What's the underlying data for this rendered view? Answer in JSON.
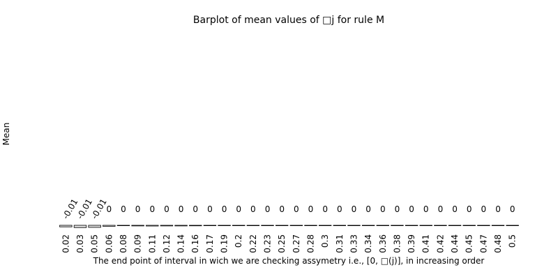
{
  "chart_data": {
    "type": "bar",
    "title": "Barplot of mean values of □j for rule M",
    "xlabel": "The end point of interval in wich we are checking assymetry i.e., [0, □(j)], in increasing order",
    "ylabel": "Mean",
    "categories": [
      "0.02",
      "0.03",
      "0.05",
      "0.06",
      "0.08",
      "0.09",
      "0.11",
      "0.12",
      "0.14",
      "0.16",
      "0.17",
      "0.19",
      "0.2",
      "0.22",
      "0.23",
      "0.25",
      "0.27",
      "0.28",
      "0.3",
      "0.31",
      "0.33",
      "0.34",
      "0.36",
      "0.38",
      "0.39",
      "0.41",
      "0.42",
      "0.44",
      "0.45",
      "0.47",
      "0.48",
      "0.5"
    ],
    "values": [
      -0.0075,
      -0.011,
      -0.01,
      -0.005,
      -0.002,
      -0.003,
      -0.0035,
      -0.003,
      -0.003,
      -0.0025,
      -0.002,
      -0.0015,
      -0.0012,
      -0.001,
      -0.001,
      -0.0008,
      -0.0008,
      -0.0006,
      -0.0006,
      -0.0005,
      -0.0005,
      -0.0004,
      -0.0004,
      -0.0004,
      -0.0003,
      -0.0003,
      -0.0003,
      -0.0002,
      -0.0002,
      -0.0002,
      -0.0001,
      -0.0001
    ],
    "data_labels": [
      "-0.01",
      "-0.01",
      "-0.01",
      "0",
      "0",
      "0",
      "0",
      "0",
      "0",
      "0",
      "0",
      "0",
      "0",
      "0",
      "0",
      "0",
      "0",
      "0",
      "0",
      "0",
      "0",
      "0",
      "0",
      "0",
      "0",
      "0",
      "0",
      "0",
      "0",
      "0",
      "0",
      "0"
    ],
    "bar_fill": "#d9d9d9",
    "bar_stroke": "#000000",
    "grid": false,
    "legend": "none"
  }
}
